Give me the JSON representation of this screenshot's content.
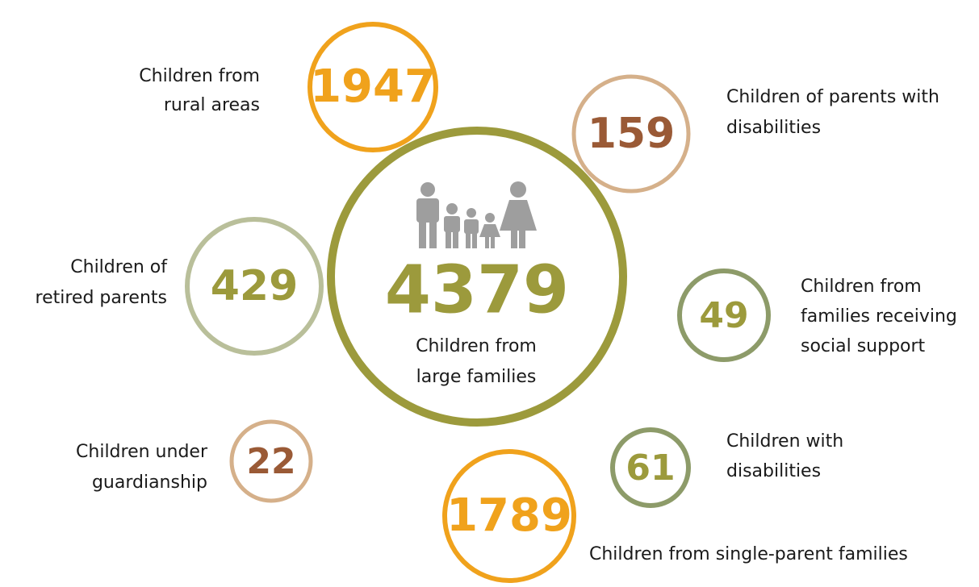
{
  "center": {
    "value": 4379,
    "label": [
      "Children from",
      "large families"
    ],
    "color": "#9c9a3c"
  },
  "items": [
    {
      "value": 1947,
      "label": [
        "Children from",
        "rural areas"
      ],
      "color": "#f0a21c",
      "text_color": "#f0a21c"
    },
    {
      "value": 159,
      "label": [
        "Children of parents with",
        "disabilities"
      ],
      "color": "#d5b08a",
      "text_color": "#9a5a36"
    },
    {
      "value": 429,
      "label": [
        "Children of",
        "retired parents"
      ],
      "color": "#b9bf9a",
      "text_color": "#9c9a3c"
    },
    {
      "value": 49,
      "label": [
        "Children from",
        "families receiving",
        "social support"
      ],
      "color": "#8d9b69",
      "text_color": "#9c9a3c"
    },
    {
      "value": 22,
      "label": [
        "Children under",
        "guardianship"
      ],
      "color": "#d5b08a",
      "text_color": "#9a5a36"
    },
    {
      "value": 61,
      "label": [
        "Children with",
        "disabilities"
      ],
      "color": "#8d9b69",
      "text_color": "#9c9a3c"
    },
    {
      "value": 1789,
      "label": [
        "Children from single-parent families"
      ],
      "color": "#f0a21c",
      "text_color": "#f0a21c"
    }
  ]
}
